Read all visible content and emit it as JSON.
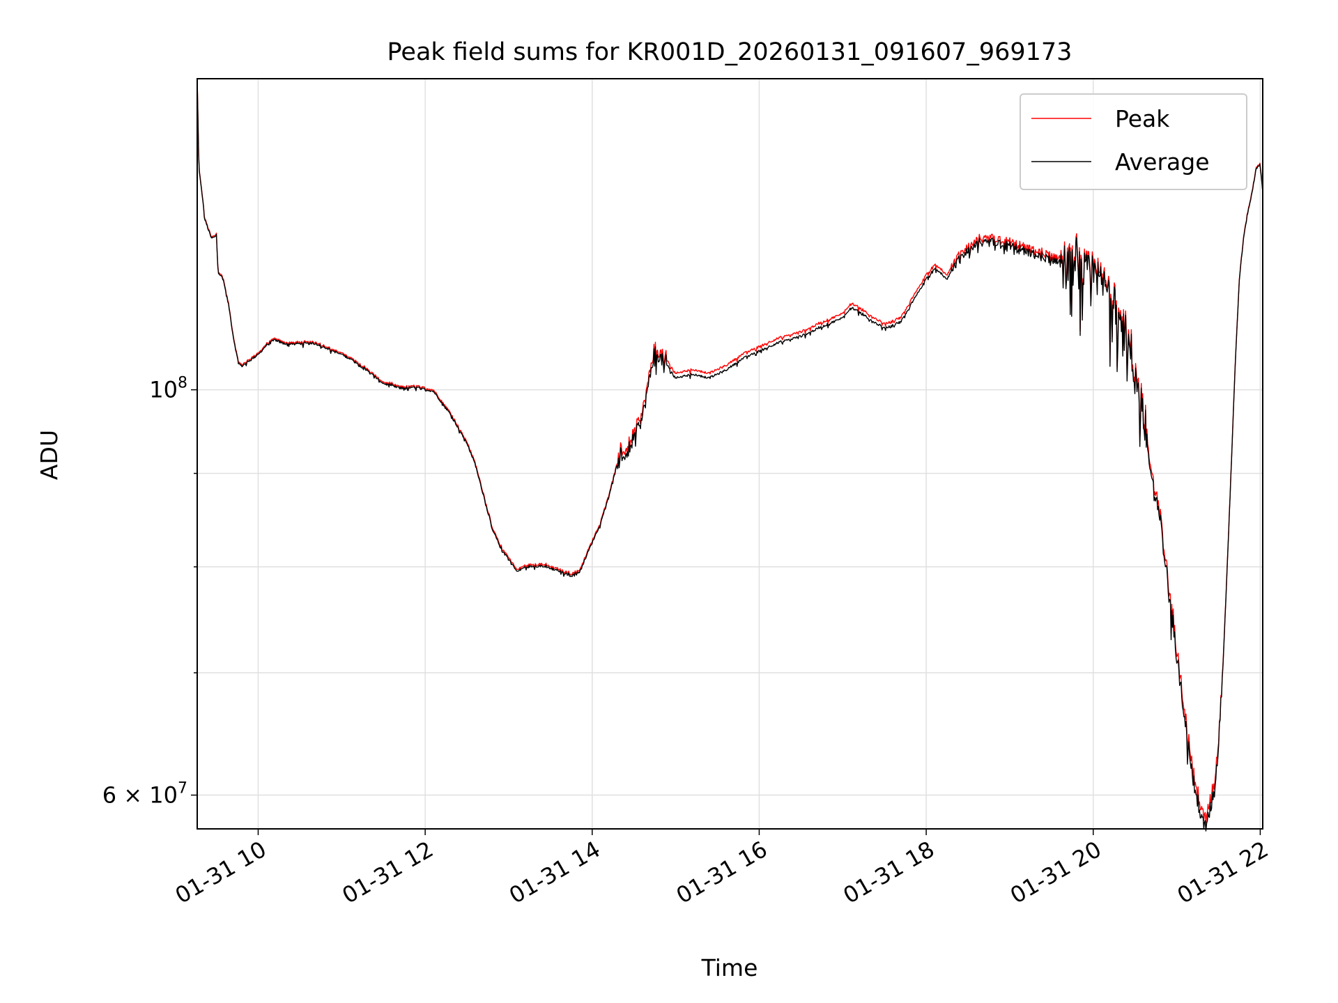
{
  "chart_data": {
    "type": "line",
    "title": "Peak field sums for KR001D_20260131_091607_969173",
    "xlabel": "Time",
    "ylabel": "ADU",
    "yscale": "log",
    "xlim_hours": [
      9.27,
      22.03
    ],
    "ylim": [
      57500000,
      148000000
    ],
    "grid": true,
    "legend_position": "upper right",
    "x_ticks": [
      {
        "value": 10,
        "label": "01-31 10"
      },
      {
        "value": 12,
        "label": "01-31 12"
      },
      {
        "value": 14,
        "label": "01-31 14"
      },
      {
        "value": 16,
        "label": "01-31 16"
      },
      {
        "value": 18,
        "label": "01-31 18"
      },
      {
        "value": 20,
        "label": "01-31 20"
      },
      {
        "value": 22,
        "label": "01-31 22"
      }
    ],
    "y_major_ticks": [
      {
        "value": 100000000,
        "base": "10",
        "exp": "8",
        "mantissa": ""
      },
      {
        "value": 60000000,
        "base": "10",
        "exp": "7",
        "mantissa": "6"
      }
    ],
    "y_minor_ticks": [
      70000000,
      80000000,
      90000000
    ],
    "x_unit": "hours since 2026-01-31 00:00",
    "series": [
      {
        "name": "Peak",
        "color": "#ff0000",
        "offset": 600000
      },
      {
        "name": "Average",
        "color": "#000000",
        "offset": 0
      }
    ],
    "anchor_points": [
      [
        9.27,
        148000000
      ],
      [
        9.29,
        132000000
      ],
      [
        9.32,
        129000000
      ],
      [
        9.36,
        124000000
      ],
      [
        9.44,
        121000000
      ],
      [
        9.5,
        121500000
      ],
      [
        9.52,
        116000000
      ],
      [
        9.58,
        115000000
      ],
      [
        9.65,
        111000000
      ],
      [
        9.7,
        107000000
      ],
      [
        9.76,
        103500000
      ],
      [
        9.8,
        103000000
      ],
      [
        9.9,
        103800000
      ],
      [
        10.0,
        104500000
      ],
      [
        10.1,
        105800000
      ],
      [
        10.2,
        106500000
      ],
      [
        10.3,
        106000000
      ],
      [
        10.5,
        106000000
      ],
      [
        10.7,
        106000000
      ],
      [
        10.9,
        105000000
      ],
      [
        11.1,
        104000000
      ],
      [
        11.3,
        102500000
      ],
      [
        11.5,
        100800000
      ],
      [
        11.7,
        100200000
      ],
      [
        11.9,
        100300000
      ],
      [
        12.1,
        99800000
      ],
      [
        12.3,
        97000000
      ],
      [
        12.5,
        93500000
      ],
      [
        12.6,
        91000000
      ],
      [
        12.7,
        87500000
      ],
      [
        12.8,
        84000000
      ],
      [
        12.9,
        82000000
      ],
      [
        13.0,
        80800000
      ],
      [
        13.1,
        79500000
      ],
      [
        13.2,
        80000000
      ],
      [
        13.4,
        80100000
      ],
      [
        13.6,
        79600000
      ],
      [
        13.75,
        79100000
      ],
      [
        13.85,
        79500000
      ],
      [
        13.95,
        81500000
      ],
      [
        14.1,
        84500000
      ],
      [
        14.2,
        87500000
      ],
      [
        14.3,
        91000000
      ],
      [
        14.45,
        93000000
      ],
      [
        14.6,
        96500000
      ],
      [
        14.75,
        105000000
      ],
      [
        14.9,
        103000000
      ],
      [
        15.0,
        101500000
      ],
      [
        15.2,
        102000000
      ],
      [
        15.4,
        101500000
      ],
      [
        15.6,
        102500000
      ],
      [
        15.8,
        104000000
      ],
      [
        16.0,
        105000000
      ],
      [
        16.2,
        106000000
      ],
      [
        16.5,
        107000000
      ],
      [
        16.8,
        108500000
      ],
      [
        17.0,
        109500000
      ],
      [
        17.1,
        111000000
      ],
      [
        17.3,
        109500000
      ],
      [
        17.5,
        108000000
      ],
      [
        17.7,
        109000000
      ],
      [
        17.85,
        112000000
      ],
      [
        18.0,
        115000000
      ],
      [
        18.1,
        116500000
      ],
      [
        18.25,
        115000000
      ],
      [
        18.4,
        118000000
      ],
      [
        18.6,
        120000000
      ],
      [
        18.8,
        120500000
      ],
      [
        19.0,
        120000000
      ],
      [
        19.3,
        118500000
      ],
      [
        19.6,
        117500000
      ],
      [
        19.8,
        116500000
      ],
      [
        20.0,
        115500000
      ],
      [
        20.2,
        113000000
      ],
      [
        20.4,
        107000000
      ],
      [
        20.5,
        101000000
      ],
      [
        20.6,
        97500000
      ],
      [
        20.7,
        89000000
      ],
      [
        20.8,
        85000000
      ],
      [
        20.9,
        78000000
      ],
      [
        21.0,
        71500000
      ],
      [
        21.1,
        66000000
      ],
      [
        21.2,
        61000000
      ],
      [
        21.3,
        58000000
      ],
      [
        21.35,
        57600000
      ],
      [
        21.42,
        59500000
      ],
      [
        21.48,
        62000000
      ],
      [
        21.55,
        70000000
      ],
      [
        21.6,
        79000000
      ],
      [
        21.65,
        90000000
      ],
      [
        21.7,
        103000000
      ],
      [
        21.75,
        115000000
      ],
      [
        21.8,
        121000000
      ],
      [
        21.85,
        125000000
      ],
      [
        21.9,
        128000000
      ],
      [
        21.95,
        132000000
      ],
      [
        22.0,
        133000000
      ],
      [
        22.03,
        128000000
      ]
    ],
    "noise_regions": [
      {
        "from": 14.3,
        "to": 14.95,
        "amp": 0.025
      },
      {
        "from": 18.3,
        "to": 19.6,
        "amp": 0.015
      },
      {
        "from": 19.6,
        "to": 20.65,
        "amp": 0.07
      },
      {
        "from": 20.65,
        "to": 21.55,
        "amp": 0.03
      }
    ]
  }
}
